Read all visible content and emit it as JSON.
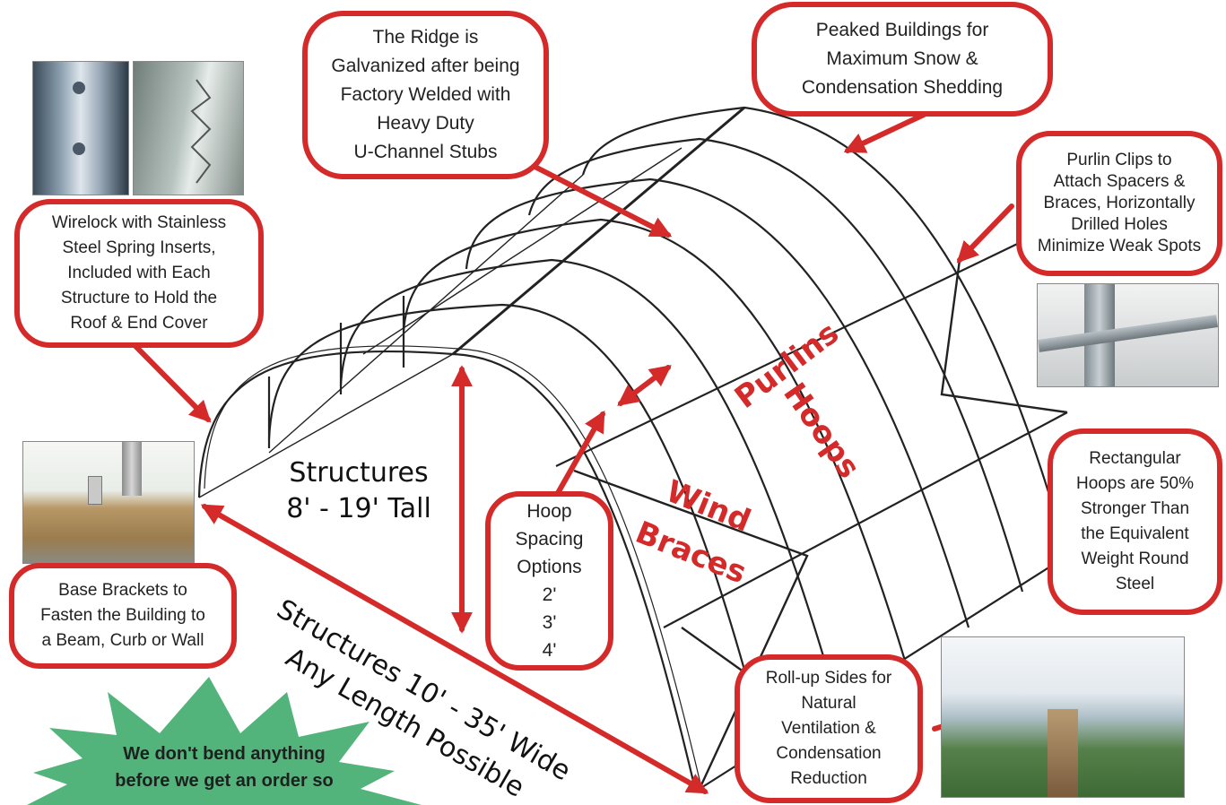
{
  "callouts": {
    "ridge": "The Ridge is\nGalvanized after being\nFactory Welded with\nHeavy Duty\nU-Channel Stubs",
    "peaked": "Peaked Buildings for\nMaximum Snow &\nCondensation Shedding",
    "purlin_clips": "Purlin Clips to\nAttach Spacers &\nBraces, Horizontally\nDrilled Holes\nMinimize Weak Spots",
    "wirelock": "Wirelock with Stainless\nSteel Spring Inserts,\nIncluded with Each\nStructure to Hold the\nRoof & End Cover",
    "rectangular": "Rectangular\nHoops are 50%\nStronger Than\nthe Equivalent\nWeight Round\nSteel",
    "base_brackets": "Base Brackets to\nFasten the Building to\na Beam, Curb or Wall",
    "hoop_spacing": "Hoop\nSpacing\nOptions\n2'\n3'\n4'",
    "rollup": "Roll-up Sides for\nNatural\nVentilation &\nCondensation\nReduction"
  },
  "labels": {
    "purlins": "Purlins",
    "hoops": "Hoops",
    "wind": "Wind",
    "braces": "Braces",
    "tall": "Structures\n8' - 19' Tall",
    "width_line1": "Structures 10' - 35' Wide",
    "width_line2": "Any Length Possible"
  },
  "badge": {
    "text": "We don't bend anything\nbefore we get an order so"
  },
  "colors": {
    "accent_red": "#d42a2a",
    "badge_green": "#52b47a"
  }
}
